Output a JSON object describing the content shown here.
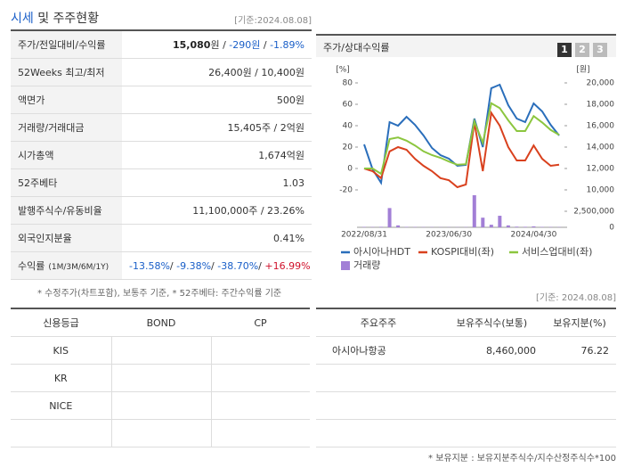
{
  "header": {
    "title_highlight": "시세",
    "title_rest": "및 주주현황",
    "date": "[기준:2024.08.08]"
  },
  "price_table": {
    "rows": [
      {
        "label": "주가/전일대비/수익률",
        "parts": [
          {
            "text": "15,080",
            "style": "bold"
          },
          {
            "text": "원 / ",
            "style": "plain"
          },
          {
            "text": "-290원",
            "style": "down"
          },
          {
            "text": " / ",
            "style": "plain"
          },
          {
            "text": "-1.89%",
            "style": "down"
          }
        ]
      },
      {
        "label": "52Weeks 최고/최저",
        "parts": [
          {
            "text": "26,400원 / 10,400원",
            "style": "plain"
          }
        ]
      },
      {
        "label": "액면가",
        "parts": [
          {
            "text": "500원",
            "style": "plain"
          }
        ]
      },
      {
        "label": "거래량/거래대금",
        "parts": [
          {
            "text": "15,405주 / 2억원",
            "style": "plain"
          }
        ]
      },
      {
        "label": "시가총액",
        "parts": [
          {
            "text": "1,674억원",
            "style": "plain"
          }
        ]
      },
      {
        "label": "52주베타",
        "parts": [
          {
            "text": "1.03",
            "style": "plain"
          }
        ]
      },
      {
        "label": "발행주식수/유동비율",
        "parts": [
          {
            "text": "11,100,000주 / 23.26%",
            "style": "plain"
          }
        ]
      },
      {
        "label": "외국인지분율",
        "parts": [
          {
            "text": "0.41%",
            "style": "plain"
          }
        ]
      },
      {
        "label": "수익률",
        "label_note": "(1M/3M/6M/1Y)",
        "parts": [
          {
            "text": "-13.58%",
            "style": "down"
          },
          {
            "text": "/ ",
            "style": "plain"
          },
          {
            "text": "-9.38%",
            "style": "down"
          },
          {
            "text": "/ ",
            "style": "plain"
          },
          {
            "text": "-38.70%",
            "style": "down"
          },
          {
            "text": "/ ",
            "style": "plain"
          },
          {
            "text": "+16.99%",
            "style": "up"
          }
        ]
      }
    ]
  },
  "chart_panel": {
    "title": "주가/상대수익률",
    "buttons": [
      "1",
      "2",
      "3"
    ],
    "active_button": 0
  },
  "chart_data": {
    "type": "line",
    "categories": [
      "2022/08/31",
      null,
      null,
      null,
      null,
      null,
      null,
      null,
      null,
      null,
      "2023/06/30",
      null,
      null,
      null,
      null,
      null,
      null,
      null,
      null,
      null,
      "2024/04/30",
      null,
      null,
      null
    ],
    "y_unit": "[%]",
    "y2_unit": "[원]",
    "ylim": [
      -20,
      80
    ],
    "yticks": [
      -20,
      0,
      20,
      40,
      60,
      80
    ],
    "y2lim": [
      10000,
      20000
    ],
    "y2ticks": [
      {
        "value": 10000,
        "label": "10,000"
      },
      {
        "value": 12000,
        "label": "12,000"
      },
      {
        "value": 14000,
        "label": "14,000"
      },
      {
        "value": 16000,
        "label": "16,000"
      },
      {
        "value": 18000,
        "label": "18,000"
      },
      {
        "value": 20000,
        "label": "20,000"
      }
    ],
    "volume_lim": [
      0,
      5000000
    ],
    "volume_ticks": [
      0,
      {
        "value": 2500000,
        "label": "2,500,000"
      }
    ],
    "series": [
      {
        "name": "아시아나HDT",
        "color": "#2a6ebb",
        "axis": "y2",
        "values": [
          14250,
          11917,
          10667,
          16333,
          16000,
          16833,
          16083,
          15083,
          13917,
          13250,
          12917,
          12250,
          12333,
          16667,
          14000,
          19500,
          19833,
          17917,
          16667,
          16333,
          18083,
          17333,
          16083,
          15080
        ]
      },
      {
        "name": "KOSPI대비(좌)",
        "color": "#d9411e",
        "values": [
          0,
          -2.5,
          -9,
          16,
          20,
          17.5,
          9,
          2.5,
          -2.5,
          -9,
          -11,
          -17.5,
          -15,
          43,
          -2.5,
          52,
          40,
          20,
          7.5,
          7.5,
          21.5,
          9,
          2.5,
          3.5
        ]
      },
      {
        "name": "서비스업대비(좌)",
        "color": "#8cc63f",
        "values": [
          0,
          0,
          -5,
          27.5,
          29,
          26,
          21.5,
          16,
          12.5,
          10,
          6.5,
          3.5,
          4,
          44,
          24,
          61,
          56.5,
          45,
          35,
          35,
          49,
          43,
          36,
          31.5
        ]
      },
      {
        "name": "거래량",
        "color": "#a27fd6",
        "type": "bar",
        "axis": "volume",
        "values": [
          60000,
          50000,
          80000,
          3000000,
          300000,
          60000,
          50000,
          40000,
          40000,
          30000,
          30000,
          30000,
          40000,
          5000000,
          1500000,
          400000,
          1800000,
          300000,
          100000,
          80000,
          150000,
          60000,
          50000,
          40000
        ]
      }
    ]
  },
  "note": "* 수정주가(차트포함), 보통주 기준, * 52주베타: 주간수익률 기준",
  "date2": "[기준: 2024.08.08]",
  "credit_table": {
    "headers": [
      "신용등급",
      "BOND",
      "CP"
    ],
    "agencies": [
      "KIS",
      "KR",
      "NICE"
    ]
  },
  "holder_table": {
    "headers": [
      "주요주주",
      "보유주식수(보통)",
      "보유지분(%)"
    ],
    "rows": [
      [
        "아시아나항공",
        "8,460,000",
        "76.22"
      ]
    ]
  },
  "footnote": "* 보유지분 : 보유지분주식수/지수산정주식수*100"
}
